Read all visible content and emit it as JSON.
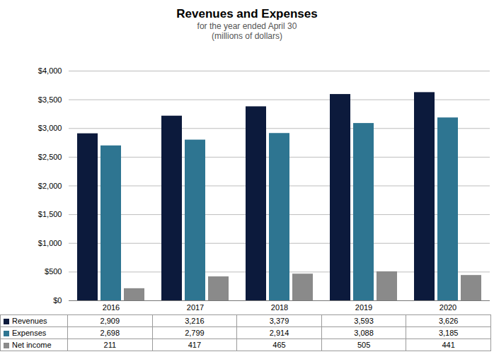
{
  "chart_data": {
    "type": "bar",
    "title": "Revenues and Expenses",
    "subtitle": [
      "for the year ended April 30",
      "(millions of dollars)"
    ],
    "categories": [
      "2016",
      "2017",
      "2018",
      "2019",
      "2020"
    ],
    "series": [
      {
        "name": "Revenues",
        "color": "#0c1a3c",
        "values": [
          2909,
          3216,
          3379,
          3593,
          3626
        ],
        "value_labels": [
          "2,909",
          "3,216",
          "3,379",
          "3,593",
          "3,626"
        ]
      },
      {
        "name": "Expenses",
        "color": "#2e7591",
        "values": [
          2698,
          2799,
          2914,
          3088,
          3185
        ],
        "value_labels": [
          "2,698",
          "2,799",
          "2,914",
          "3,088",
          "3,185"
        ]
      },
      {
        "name": "Net income",
        "color": "#8a8a8a",
        "values": [
          211,
          417,
          465,
          505,
          441
        ]
      }
    ],
    "ylim": [
      0,
      4000
    ],
    "yticks": [
      {
        "value": 0,
        "label": "$0"
      },
      {
        "value": 500,
        "label": "$500"
      },
      {
        "value": 1000,
        "label": "$1,000"
      },
      {
        "value": 1500,
        "label": "$1,500"
      },
      {
        "value": 2000,
        "label": "$2,000"
      },
      {
        "value": 2500,
        "label": "$2,500"
      },
      {
        "value": 3000,
        "label": "$3,000"
      },
      {
        "value": 3500,
        "label": "$3,500"
      },
      {
        "value": 4000,
        "label": "$4,000"
      }
    ],
    "grid": true,
    "data_labels": true
  }
}
